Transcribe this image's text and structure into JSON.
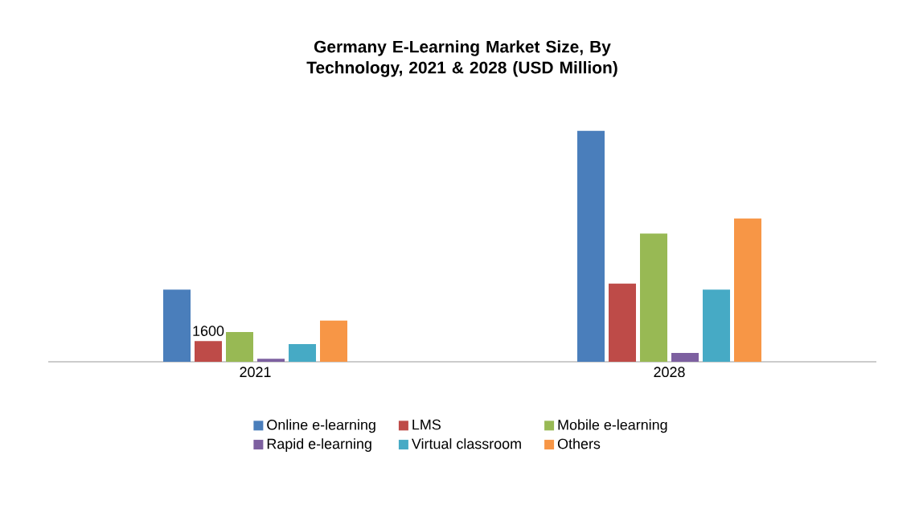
{
  "chart_data": {
    "type": "bar",
    "title": "Germany E-Learning Market Size, By Technology, 2021 & 2028 (USD Million)",
    "categories": [
      "2021",
      "2028"
    ],
    "tick_labels": "x",
    "legend": "bottom",
    "series": [
      {
        "name": "Online e-learning",
        "color": "#4a7ebb",
        "values": [
          5600,
          17900
        ]
      },
      {
        "name": "LMS",
        "color": "#be4b48",
        "values": [
          1600,
          6060
        ],
        "value_labels": [
          "1600",
          null
        ]
      },
      {
        "name": "Mobile e-learning",
        "color": "#98b954",
        "values": [
          2300,
          9940
        ]
      },
      {
        "name": "Rapid e-learning",
        "color": "#7d60a0",
        "values": [
          230,
          690
        ]
      },
      {
        "name": "Virtual classroom",
        "color": "#46aac5",
        "values": [
          1370,
          5600
        ]
      },
      {
        "name": "Others",
        "color": "#f79646",
        "values": [
          3200,
          11100
        ]
      }
    ]
  }
}
